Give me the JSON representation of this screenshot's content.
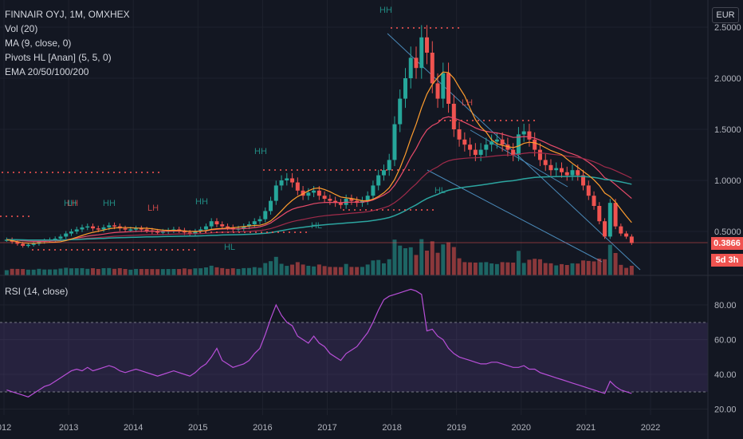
{
  "header": {
    "symbol_line": "FINNAIR OYJ, 1M, OMXHEX",
    "indicators": [
      "Vol (20)",
      "MA (9, close, 0)",
      "Pivots HL [Anan] (5, 5, 0)",
      "EMA 20/50/100/200"
    ],
    "currency": "EUR",
    "rsi_label": "RSI (14, close)"
  },
  "badges": {
    "last_price": "0.3866",
    "countdown": "5d 3h"
  },
  "colors": {
    "background": "#131722",
    "up": "#26a69a",
    "down": "#ef5350",
    "rsi": "#b84fd8",
    "ma": "#ff9d2e",
    "ema20": "#e84b6a",
    "ema50": "#a02b4a",
    "ema100": "#2ca5a0",
    "ema200": "#2962ff"
  },
  "chart_data": [
    {
      "type": "candlestick",
      "title": "FINNAIR OYJ, 1M, OMXHEX",
      "x_ticks": [
        "012",
        "2013",
        "2014",
        "2015",
        "2016",
        "2017",
        "2018",
        "2019",
        "2020",
        "2021",
        "2022"
      ],
      "y_ticks": [
        "2.5000",
        "2.0000",
        "1.5000",
        "1.0000",
        "0.5000"
      ],
      "ylim": [
        0.0,
        2.6
      ],
      "grid": true,
      "series": [
        {
          "name": "price_close_monthly",
          "start": "2012-01",
          "values": [
            0.42,
            0.4,
            0.38,
            0.36,
            0.37,
            0.38,
            0.4,
            0.41,
            0.42,
            0.43,
            0.45,
            0.48,
            0.5,
            0.52,
            0.54,
            0.55,
            0.53,
            0.52,
            0.54,
            0.56,
            0.55,
            0.53,
            0.52,
            0.52,
            0.53,
            0.52,
            0.51,
            0.5,
            0.49,
            0.5,
            0.51,
            0.52,
            0.51,
            0.49,
            0.48,
            0.5,
            0.52,
            0.55,
            0.6,
            0.57,
            0.55,
            0.54,
            0.52,
            0.53,
            0.55,
            0.57,
            0.6,
            0.62,
            0.7,
            0.8,
            0.95,
            1.0,
            1.02,
            0.98,
            0.9,
            0.85,
            0.88,
            0.9,
            0.85,
            0.82,
            0.8,
            0.78,
            0.76,
            0.82,
            0.8,
            0.78,
            0.8,
            0.85,
            0.95,
            1.05,
            1.1,
            1.2,
            1.55,
            1.8,
            2.0,
            2.2,
            2.1,
            2.4,
            2.25,
            1.95,
            1.8,
            2.05,
            1.75,
            1.5,
            1.4,
            1.35,
            1.3,
            1.25,
            1.3,
            1.35,
            1.38,
            1.4,
            1.35,
            1.3,
            1.25,
            1.45,
            1.48,
            1.4,
            1.3,
            1.2,
            1.15,
            1.1,
            1.12,
            1.08,
            1.05,
            1.1,
            1.05,
            0.95,
            0.85,
            0.75,
            0.6,
            0.45,
            0.78,
            0.55,
            0.48,
            0.45,
            0.3866
          ]
        }
      ],
      "price_markers": [
        "HH",
        "HH",
        "HH",
        "HH",
        "LH",
        "LH",
        "LH",
        "HH",
        "HL",
        "HL",
        "HL",
        "HL"
      ]
    },
    {
      "type": "line",
      "title": "RSI (14, close)",
      "y_ticks": [
        "80.00",
        "60.00",
        "40.00",
        "20.00"
      ],
      "ylim": [
        20,
        90
      ],
      "bands": {
        "upper": 70,
        "lower": 30
      },
      "series": [
        {
          "name": "rsi_monthly",
          "start": "2012-01",
          "values": [
            31,
            30,
            29,
            28,
            27,
            29,
            31,
            33,
            34,
            36,
            38,
            40,
            42,
            43,
            42,
            44,
            42,
            43,
            44,
            45,
            44,
            42,
            41,
            42,
            43,
            42,
            41,
            40,
            39,
            40,
            41,
            42,
            41,
            40,
            39,
            41,
            44,
            46,
            50,
            55,
            48,
            46,
            44,
            45,
            46,
            48,
            52,
            55,
            63,
            72,
            80,
            74,
            70,
            68,
            62,
            60,
            58,
            62,
            58,
            56,
            52,
            50,
            48,
            52,
            54,
            56,
            60,
            64,
            70,
            77,
            83,
            85,
            86,
            87,
            88,
            89,
            88,
            86,
            65,
            66,
            62,
            60,
            55,
            52,
            50,
            49,
            48,
            47,
            46,
            46,
            47,
            47,
            46,
            45,
            44,
            44,
            45,
            43,
            43,
            41,
            40,
            39,
            38,
            37,
            36,
            35,
            34,
            33,
            32,
            31,
            30,
            29,
            36,
            33,
            31,
            30,
            29
          ]
        }
      ]
    }
  ]
}
